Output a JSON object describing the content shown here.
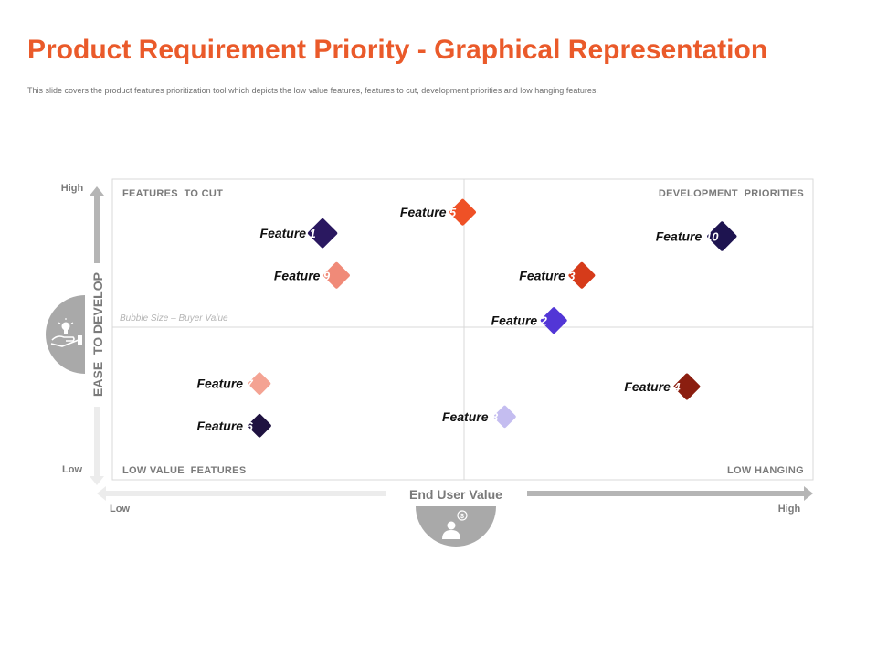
{
  "title": "Product Requirement Priority - Graphical Representation",
  "subtitle": "This slide covers the product features prioritization tool which depicts the low value features, features to cut, development priorities and low hanging features.",
  "colors": {
    "accent": "#ea5a2a",
    "axis_gray": "#a9a9a9",
    "grid": "#d9d9d9"
  },
  "icons": {
    "y_axis": "hand-lightbulb-icon",
    "x_axis": "user-dollar-icon"
  },
  "chart_data": {
    "type": "scatter",
    "xlabel": "End User Value",
    "ylabel": "EASE  TO DEVELOP",
    "x_ticks": [
      "Low",
      "High"
    ],
    "y_ticks": [
      "High",
      "Low"
    ],
    "xlim": [
      0,
      10
    ],
    "ylim": [
      0,
      10
    ],
    "grid": "quadrant dividers at x=5 and y=5",
    "quadrants": {
      "top_left": "FEATURES  TO CUT",
      "top_right": "DEVELOPMENT  PRIORITIES",
      "bottom_left": "LOW VALUE  FEATURES",
      "bottom_right": "LOW HANGING"
    },
    "annotation": "Bubble Size – Buyer Value",
    "points": [
      {
        "label": "Feature",
        "num": "1",
        "x": 3.0,
        "y": 8.2,
        "size": 1.0,
        "color": "#2a1860"
      },
      {
        "label": "Feature",
        "num": "2",
        "x": 6.3,
        "y": 5.3,
        "size": 0.85,
        "color": "#5236d6"
      },
      {
        "label": "Feature",
        "num": "3",
        "x": 6.7,
        "y": 6.8,
        "size": 0.85,
        "color": "#d63b1a"
      },
      {
        "label": "Feature",
        "num": "4",
        "x": 8.2,
        "y": 3.1,
        "size": 0.85,
        "color": "#8b1e10"
      },
      {
        "label": "Feature",
        "num": "5",
        "x": 5.0,
        "y": 8.9,
        "size": 0.85,
        "color": "#ef5126"
      },
      {
        "label": "Feature",
        "num": "6",
        "x": 2.1,
        "y": 1.8,
        "size": 0.7,
        "color": "#1f1240"
      },
      {
        "label": "Feature",
        "num": "7",
        "x": 2.1,
        "y": 3.2,
        "size": 0.65,
        "color": "#f4a393"
      },
      {
        "label": "Feature",
        "num": "8",
        "x": 5.6,
        "y": 2.1,
        "size": 0.65,
        "color": "#c4bdf0"
      },
      {
        "label": "Feature",
        "num": "9",
        "x": 3.2,
        "y": 6.8,
        "size": 0.85,
        "color": "#f08a78"
      },
      {
        "label": "Feature",
        "num": "10",
        "x": 8.7,
        "y": 8.1,
        "size": 1.0,
        "color": "#1e1450"
      }
    ]
  }
}
